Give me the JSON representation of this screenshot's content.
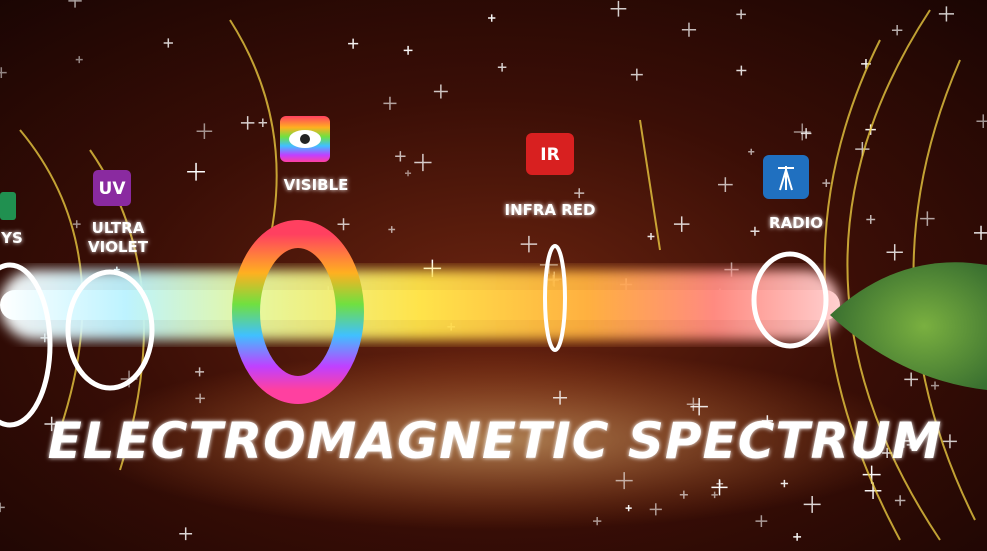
{
  "title": "ELECTROMAGNETIC SPECTRUM",
  "bands": [
    {
      "label": [
        "YS"
      ]
    },
    {
      "icon": "UV",
      "label": [
        "ULTRA",
        "VIOLET"
      ]
    },
    {
      "label": [
        "VISIBLE"
      ]
    },
    {
      "icon": "IR",
      "label": [
        "INFRA RED"
      ]
    },
    {
      "label": [
        "RADIO"
      ]
    }
  ]
}
